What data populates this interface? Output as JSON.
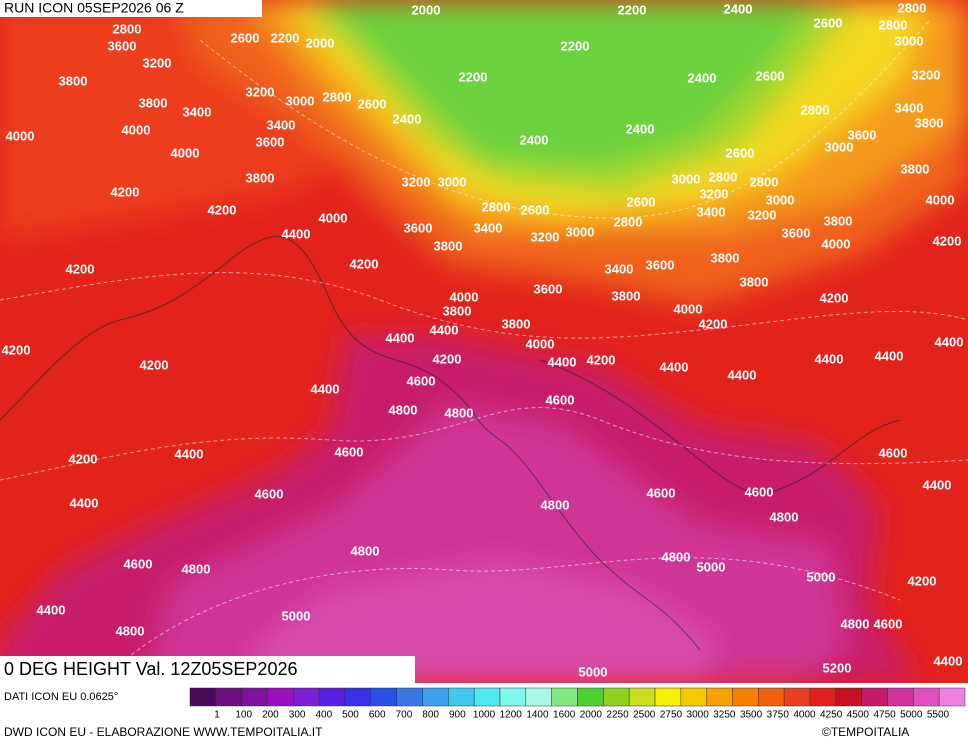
{
  "header": {
    "run": "RUN ICON 05SEP2026 06 Z",
    "title": "0 DEG HEIGHT Val. 12Z05SEP2026",
    "source": "DATI ICON EU 0.0625°"
  },
  "footer": {
    "credit": "DWD ICON EU - ELABORAZIONE WWW.TEMPOITALIA.IT",
    "copyright": "©TEMPOITALIA"
  },
  "colorbar": {
    "labels": [
      1,
      100,
      200,
      300,
      400,
      500,
      600,
      700,
      800,
      900,
      1000,
      1200,
      1400,
      1600,
      2000,
      2250,
      2500,
      2750,
      3000,
      3250,
      3500,
      3750,
      4000,
      4250,
      4500,
      4750,
      5000,
      5500
    ],
    "colors": [
      "#4a0a5a",
      "#6a1080",
      "#8010a0",
      "#9a10c0",
      "#7a20d0",
      "#5a20e0",
      "#3a30e8",
      "#2a50e8",
      "#3a78e8",
      "#40a0f0",
      "#40c8f0",
      "#50e8f0",
      "#80f8f0",
      "#a8f8e8",
      "#80e880",
      "#50d030",
      "#90d020",
      "#c8e020",
      "#f8f000",
      "#f8c800",
      "#f8a000",
      "#f88000",
      "#f06010",
      "#e84020",
      "#e02020",
      "#c81020",
      "#c81868",
      "#d030a0",
      "#e050c0",
      "#f080e0"
    ]
  },
  "contour_labels": [
    2800,
    3600,
    3200,
    2600,
    2200,
    2000,
    2000,
    2200,
    2400,
    2800,
    2200,
    2600,
    2800,
    3000,
    3200,
    2200,
    2400,
    2600,
    3800,
    3800,
    3400,
    3200,
    3000,
    2800,
    2600,
    2400,
    2800,
    3400,
    3800,
    4000,
    3400,
    3600,
    2400,
    2400,
    3600,
    3000,
    4000,
    4000,
    2600,
    3800,
    3200,
    3000,
    3000,
    2800,
    2800,
    3800,
    4200,
    3200,
    3000,
    4000,
    4200,
    2800,
    2600,
    2600,
    2800,
    3400,
    3200,
    3800,
    4000,
    3600,
    3400,
    3200,
    3000,
    3600,
    4000,
    4200,
    4400,
    3800,
    4200,
    4200,
    3400,
    3600,
    3800,
    3800,
    4200,
    3600,
    3800,
    4000,
    3800,
    4000,
    4200,
    3800,
    4400,
    4400,
    4000,
    4200,
    4200,
    4400,
    4200,
    4400,
    4400,
    4400,
    4400,
    4200,
    4400,
    4600,
    4400,
    4800,
    4800,
    4600,
    4600,
    4400,
    4200,
    4600,
    4600,
    4600,
    4600,
    4400,
    4400,
    4800,
    4800,
    4800,
    4600,
    4800,
    4800,
    5000,
    5000,
    4200,
    4400,
    5000,
    4800,
    4800,
    4600,
    5000,
    5200,
    4400
  ]
}
